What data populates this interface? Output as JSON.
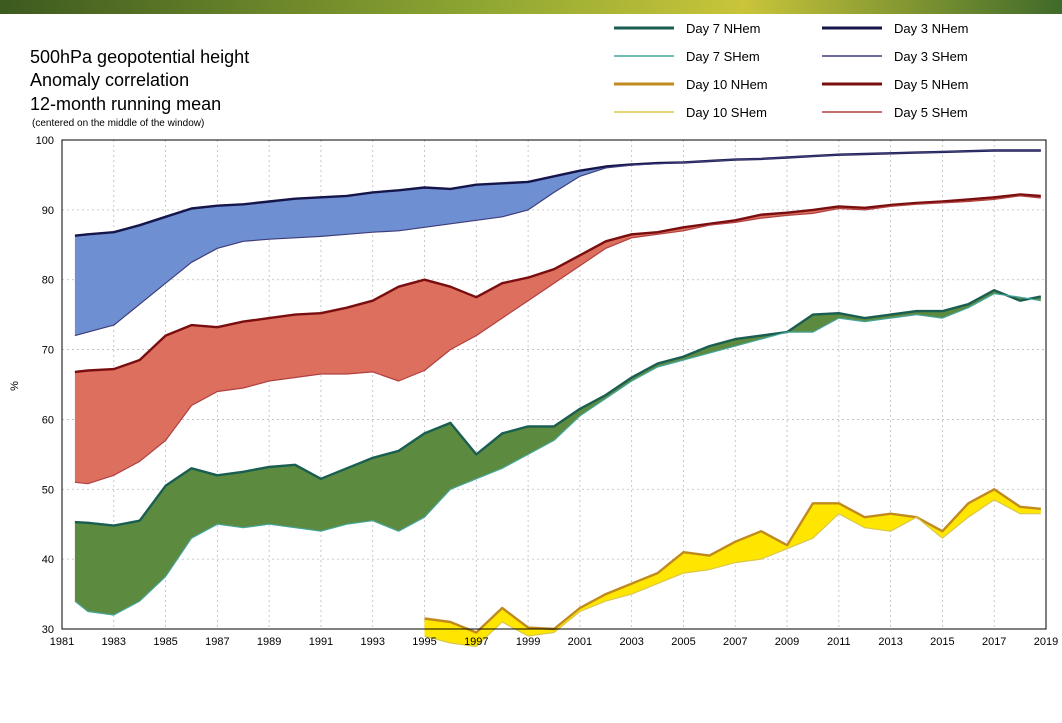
{
  "chart_data": {
    "type": "area",
    "title_lines": [
      "500hPa geopotential height",
      "Anomaly correlation",
      "12-month running mean"
    ],
    "note": "(centered on the middle of the window)",
    "xlabel": "",
    "ylabel": "%",
    "xlim": [
      1981,
      2019
    ],
    "ylim": [
      30,
      100
    ],
    "x_ticks": [
      "1981",
      "1983",
      "1985",
      "1987",
      "1989",
      "1991",
      "1993",
      "1995",
      "1997",
      "1999",
      "2001",
      "2003",
      "2005",
      "2007",
      "2009",
      "2011",
      "2013",
      "2015",
      "2017",
      "2019"
    ],
    "y_ticks": [
      "30",
      "40",
      "50",
      "60",
      "70",
      "80",
      "90",
      "100"
    ],
    "grid": true,
    "legend_position": "top-right",
    "series": [
      {
        "name": "Day 3 NHem",
        "color": "#15154a",
        "x": [
          1981.5,
          1982,
          1983,
          1984,
          1985,
          1986,
          1987,
          1988,
          1989,
          1990,
          1991,
          1992,
          1993,
          1994,
          1995,
          1996,
          1997,
          1998,
          1999,
          2000,
          2001,
          2002,
          2003,
          2004,
          2005,
          2006,
          2007,
          2008,
          2009,
          2010,
          2011,
          2012,
          2013,
          2014,
          2015,
          2016,
          2017,
          2018,
          2018.8
        ],
        "y": [
          86.3,
          86.5,
          86.8,
          87.8,
          89,
          90.2,
          90.6,
          90.8,
          91.2,
          91.6,
          91.8,
          92,
          92.5,
          92.8,
          93.2,
          93,
          93.6,
          93.8,
          94,
          94.8,
          95.6,
          96.2,
          96.5,
          96.7,
          96.8,
          97,
          97.2,
          97.3,
          97.5,
          97.7,
          97.9,
          98,
          98.1,
          98.2,
          98.3,
          98.4,
          98.5,
          98.5,
          98.5
        ]
      },
      {
        "name": "Day 3 SHem",
        "color": "#3d3d7a",
        "x": [
          1981.5,
          1982,
          1983,
          1984,
          1985,
          1986,
          1987,
          1988,
          1989,
          1990,
          1991,
          1992,
          1993,
          1994,
          1995,
          1996,
          1997,
          1998,
          1999,
          2000,
          2001,
          2002,
          2003,
          2004,
          2005,
          2006,
          2007,
          2008,
          2009,
          2010,
          2011,
          2012,
          2013,
          2014,
          2015,
          2016,
          2017,
          2018,
          2018.8
        ],
        "y": [
          72,
          72.5,
          73.5,
          76.5,
          79.5,
          82.5,
          84.5,
          85.5,
          85.8,
          86,
          86.2,
          86.5,
          86.8,
          87,
          87.5,
          88,
          88.5,
          89,
          90,
          92.5,
          94.8,
          96,
          96.4,
          96.6,
          96.8,
          97,
          97.2,
          97.3,
          97.5,
          97.7,
          97.9,
          98,
          98.1,
          98.2,
          98.3,
          98.4,
          98.5,
          98.5,
          98.5
        ]
      },
      {
        "name": "Day 5 NHem",
        "color": "#7a0e0e",
        "x": [
          1981.5,
          1982,
          1983,
          1984,
          1985,
          1986,
          1987,
          1988,
          1989,
          1990,
          1991,
          1992,
          1993,
          1994,
          1995,
          1996,
          1997,
          1998,
          1999,
          2000,
          2001,
          2002,
          2003,
          2004,
          2005,
          2006,
          2007,
          2008,
          2009,
          2010,
          2011,
          2012,
          2013,
          2014,
          2015,
          2016,
          2017,
          2018,
          2018.8
        ],
        "y": [
          66.8,
          67,
          67.2,
          68.5,
          72,
          73.5,
          73.2,
          74,
          74.5,
          75,
          75.2,
          76,
          77,
          79,
          80,
          79,
          77.5,
          79.5,
          80.3,
          81.5,
          83.5,
          85.5,
          86.5,
          86.8,
          87.5,
          88,
          88.5,
          89.3,
          89.6,
          90,
          90.5,
          90.3,
          90.7,
          91,
          91.2,
          91.5,
          91.8,
          92.2,
          92
        ]
      },
      {
        "name": "Day 5 SHem",
        "color": "#b04040",
        "x": [
          1981.5,
          1982,
          1983,
          1984,
          1985,
          1986,
          1987,
          1988,
          1989,
          1990,
          1991,
          1992,
          1993,
          1994,
          1995,
          1996,
          1997,
          1998,
          1999,
          2000,
          2001,
          2002,
          2003,
          2004,
          2005,
          2006,
          2007,
          2008,
          2009,
          2010,
          2011,
          2012,
          2013,
          2014,
          2015,
          2016,
          2017,
          2018,
          2018.8
        ],
        "y": [
          51,
          50.8,
          52,
          54,
          57,
          62,
          64,
          64.5,
          65.5,
          66,
          66.5,
          66.5,
          66.8,
          65.5,
          67,
          70,
          72,
          74.5,
          77,
          79.5,
          82,
          84.5,
          86,
          86.5,
          87,
          87.8,
          88.2,
          88.8,
          89.2,
          89.5,
          90.2,
          90,
          90.5,
          90.8,
          91,
          91.2,
          91.5,
          92,
          91.7
        ]
      },
      {
        "name": "Day 7 NHem",
        "color": "#1a5e52",
        "x": [
          1981.5,
          1982,
          1983,
          1984,
          1985,
          1986,
          1987,
          1988,
          1989,
          1990,
          1991,
          1992,
          1993,
          1994,
          1995,
          1996,
          1997,
          1998,
          1999,
          2000,
          2001,
          2002,
          2003,
          2004,
          2005,
          2006,
          2007,
          2008,
          2009,
          2010,
          2011,
          2012,
          2013,
          2014,
          2015,
          2016,
          2017,
          2018,
          2018.8
        ],
        "y": [
          45.3,
          45.2,
          44.8,
          45.5,
          50.5,
          53,
          52,
          52.5,
          53.2,
          53.5,
          51.5,
          53,
          54.5,
          55.5,
          58,
          59.5,
          55,
          58,
          59,
          59,
          61.5,
          63.5,
          66,
          68,
          69,
          70.5,
          71.5,
          72,
          72.5,
          75,
          75.2,
          74.5,
          75,
          75.5,
          75.5,
          76.5,
          78.5,
          77,
          77.6
        ]
      },
      {
        "name": "Day 7 SHem",
        "color": "#45a59c",
        "x": [
          1981.5,
          1982,
          1983,
          1984,
          1985,
          1986,
          1987,
          1988,
          1989,
          1990,
          1991,
          1992,
          1993,
          1994,
          1995,
          1996,
          1997,
          1998,
          1999,
          2000,
          2001,
          2002,
          2003,
          2004,
          2005,
          2006,
          2007,
          2008,
          2009,
          2010,
          2011,
          2012,
          2013,
          2014,
          2015,
          2016,
          2017,
          2018,
          2018.8
        ],
        "y": [
          34,
          32.5,
          32,
          34,
          37.5,
          43,
          45,
          44.5,
          45,
          44.5,
          44,
          45,
          45.5,
          44,
          46,
          50,
          51.5,
          53,
          55,
          57,
          60.5,
          63,
          65.5,
          67.5,
          68.5,
          69.5,
          70.5,
          71.5,
          72.5,
          72.5,
          74.5,
          74,
          74.5,
          75,
          74.5,
          76,
          78,
          77.5,
          77
        ]
      },
      {
        "name": "Day 10 NHem",
        "color": "#c08a1e",
        "x": [
          1995,
          1996,
          1997,
          1998,
          1999,
          2000,
          2001,
          2002,
          2003,
          2004,
          2005,
          2006,
          2007,
          2008,
          2009,
          2010,
          2011,
          2012,
          2013,
          2014,
          2015,
          2016,
          2017,
          2018,
          2018.8
        ],
        "y": [
          31.5,
          31,
          29.5,
          33,
          30.2,
          30,
          33,
          35,
          36.5,
          38,
          41,
          40.5,
          42.5,
          44,
          42,
          48,
          48,
          46,
          46.5,
          46,
          44,
          48,
          50,
          47.5,
          47.2
        ]
      },
      {
        "name": "Day 10 SHem",
        "color": "#d9c84a",
        "x": [
          1995,
          1996,
          1997,
          1998,
          1999,
          2000,
          2001,
          2002,
          2003,
          2004,
          2005,
          2006,
          2007,
          2008,
          2009,
          2010,
          2011,
          2012,
          2013,
          2014,
          2015,
          2016,
          2017,
          2018,
          2018.8
        ],
        "y": [
          29,
          28,
          27.5,
          31,
          29,
          29.5,
          32.5,
          34,
          35,
          36.5,
          38,
          38.5,
          39.5,
          40,
          41.5,
          43,
          46.5,
          44.5,
          44,
          46,
          43,
          46,
          48.5,
          46.5,
          46.5
        ]
      }
    ],
    "bands": [
      {
        "upper": "Day 3 NHem",
        "lower": "Day 3 SHem",
        "fill": "#6f8fd3"
      },
      {
        "upper": "Day 5 NHem",
        "lower": "Day 5 SHem",
        "fill": "#dd6f5f"
      },
      {
        "upper": "Day 7 NHem",
        "lower": "Day 7 SHem",
        "fill": "#5c8a3e"
      },
      {
        "upper": "Day 10 NHem",
        "lower": "Day 10 SHem",
        "fill": "#ffe600"
      }
    ],
    "legend_order": [
      "Day 7 NHem",
      "Day 3 NHem",
      "Day 7 SHem",
      "Day 3 SHem",
      "Day 10 NHem",
      "Day 5 NHem",
      "Day 10 SHem",
      "Day 5 SHem"
    ]
  }
}
